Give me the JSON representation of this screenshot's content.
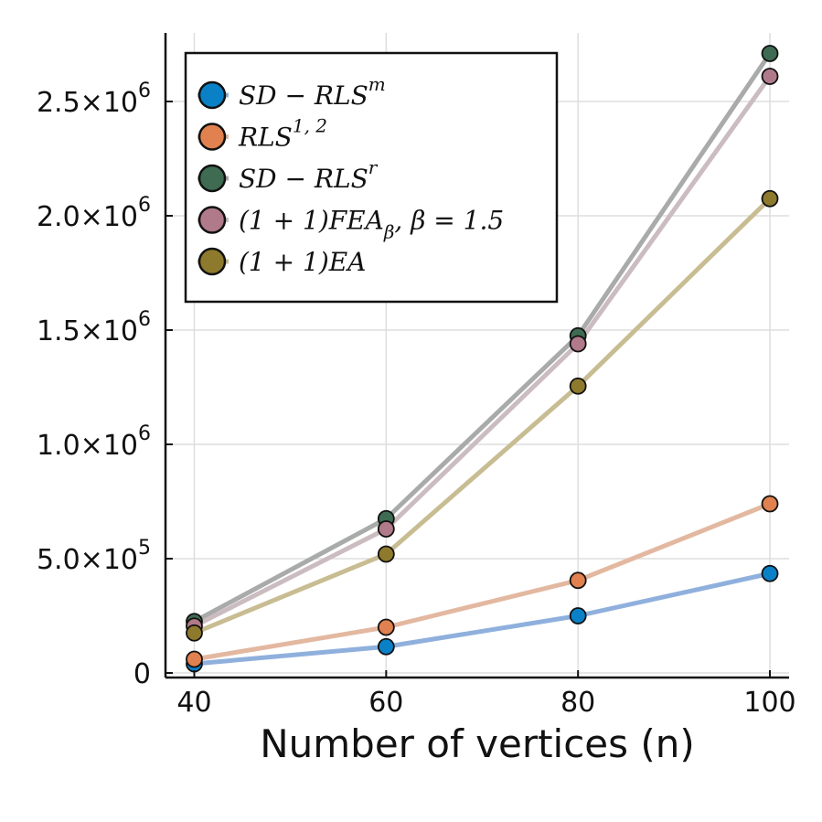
{
  "chart_data": {
    "type": "line",
    "title": "",
    "xlabel": "Number of vertices (n)",
    "ylabel": "",
    "x": [
      40,
      60,
      80,
      100
    ],
    "xlim": [
      37,
      102
    ],
    "ylim": [
      -20000,
      2800000
    ],
    "xticks": [
      40,
      60,
      80,
      100
    ],
    "xtick_labels": [
      "40",
      "60",
      "80",
      "100"
    ],
    "yticks": [
      0,
      500000,
      1000000,
      1500000,
      2000000,
      2500000
    ],
    "ytick_labels": [
      {
        "mantissa": "0",
        "exp": ""
      },
      {
        "mantissa": "5.0×10",
        "exp": "5"
      },
      {
        "mantissa": "1.0×10",
        "exp": "6"
      },
      {
        "mantissa": "1.5×10",
        "exp": "6"
      },
      {
        "mantissa": "2.0×10",
        "exp": "6"
      },
      {
        "mantissa": "2.5×10",
        "exp": "6"
      }
    ],
    "grid": true,
    "legend_position": "top-left",
    "series": [
      {
        "name": "SD − RLS^m",
        "label_main": "SD − RLS",
        "label_sup": "m",
        "label_sub": "",
        "label_tail": "",
        "line_color": "#8fb0dd",
        "marker_color": "#0a81c7",
        "values": [
          40000,
          115000,
          250000,
          435000
        ]
      },
      {
        "name": "RLS^{1,2}",
        "label_main": "RLS",
        "label_sup": "1, 2",
        "label_sub": "",
        "label_tail": "",
        "line_color": "#e3b8a0",
        "marker_color": "#e0814f",
        "values": [
          60000,
          200000,
          405000,
          740000
        ]
      },
      {
        "name": "SD − RLS^r",
        "label_main": "SD − RLS",
        "label_sup": "r",
        "label_sub": "",
        "label_tail": "",
        "line_color": "#a9aaaa",
        "marker_color": "#3e6b52",
        "values": [
          225000,
          675000,
          1475000,
          2710000
        ]
      },
      {
        "name": "(1 + 1)FEA_β, β = 1.5",
        "label_main": "(1 + 1)FEA",
        "label_sup": "",
        "label_sub": "β",
        "label_tail": ", β = 1.5",
        "line_color": "#cbbcc0",
        "marker_color": "#b07a8a",
        "values": [
          205000,
          630000,
          1440000,
          2610000
        ]
      },
      {
        "name": "(1 + 1)EA",
        "label_main": "(1 + 1)EA",
        "label_sup": "",
        "label_sub": "",
        "label_tail": "",
        "line_color": "#c8bd92",
        "marker_color": "#8e7a2c",
        "values": [
          175000,
          520000,
          1255000,
          2075000
        ]
      }
    ]
  }
}
